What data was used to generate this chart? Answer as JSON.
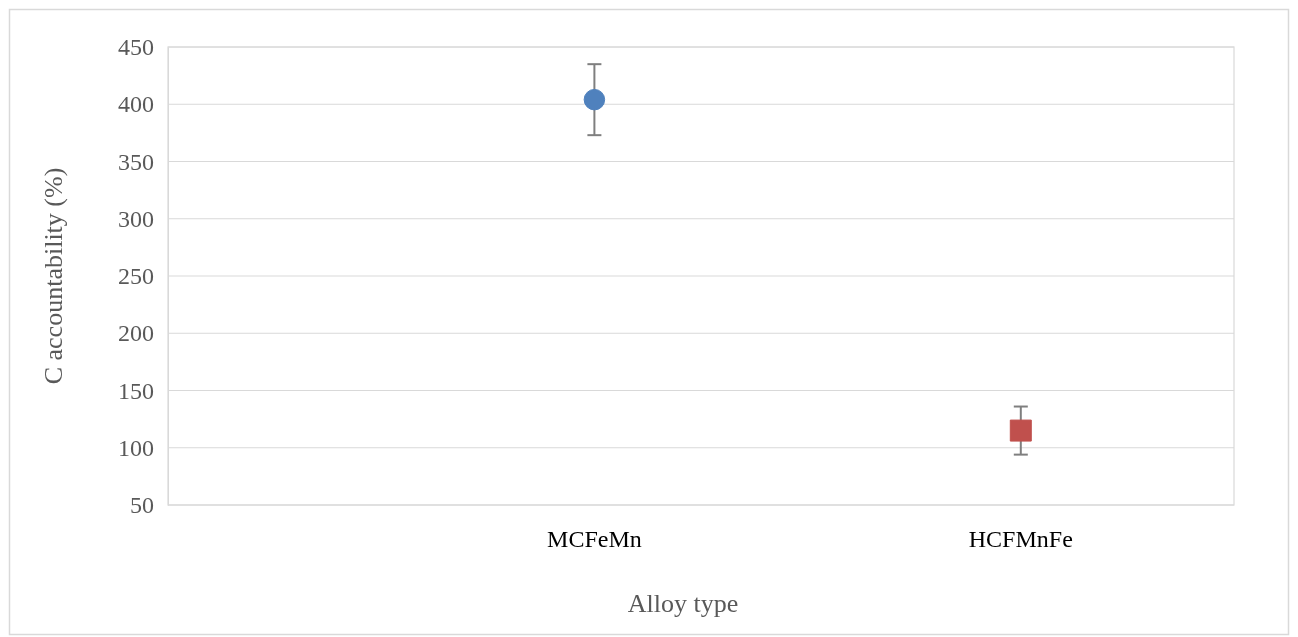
{
  "chart_data": {
    "type": "scatter",
    "xlabel": "Alloy type",
    "ylabel": "C accountability (%)",
    "categories": [
      "MCFeMn",
      "HCFMnFe"
    ],
    "series": [
      {
        "color": "#4f81bd",
        "marker": "circle",
        "values": [
          404,
          null
        ],
        "errors": [
          31,
          null
        ]
      },
      {
        "color": "#c0504d",
        "marker": "square",
        "values": [
          null,
          115
        ],
        "errors": [
          null,
          21
        ]
      }
    ],
    "ylim": [
      50,
      450
    ],
    "yticks": [
      50,
      100,
      150,
      200,
      250,
      300,
      350,
      400,
      450
    ],
    "grid": "y"
  }
}
